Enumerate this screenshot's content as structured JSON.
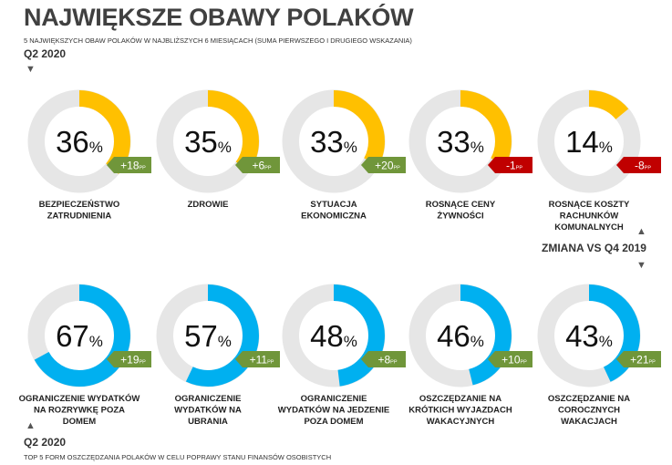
{
  "header": {
    "title": "NAJWIĘKSZE OBAWY POLAKÓW",
    "subtitle": "5 NAJWIĘKSZYCH OBAW POLAKÓW W NAJBLIŻSZYCH 6 MIESIĄCACH (SUMA PIERWSZEGO I DRUGIEGO WSKAZANIA)",
    "period": "Q2 2020"
  },
  "middle_label": "ZMIANA VS Q4 2019",
  "footer": {
    "period": "Q2 2020",
    "subtitle": "TOP 5 FORM OSZCZĘDZANIA POLAKÓW W CELU POPRAWY STANU FINANSÓW OSOBISTYCH"
  },
  "colors": {
    "yellow": "#FFC000",
    "blue": "#00B0F0",
    "track": "#E6E6E6",
    "positive": "#70963A",
    "negative": "#C00000"
  },
  "chart_data": [
    {
      "type": "donut",
      "title": "5 NAJWIĘKSZYCH OBAW POLAKÓW W NAJBLIŻSZYCH 6 MIESIĄCACH (SUMA PIERWSZEGO I DRUGIEGO WSKAZANIA)",
      "color": "yellow",
      "unit": "%",
      "change_unit": "PP",
      "items": [
        {
          "label": "BEZPIECZEŃSTWO ZATRUDNIENIA",
          "lines": [
            "BEZPIECZEŃSTWO",
            "ZATRUDNIENIA"
          ],
          "value": 36,
          "change": "+18",
          "sign": "positive"
        },
        {
          "label": "ZDROWIE",
          "lines": [
            "ZDROWIE"
          ],
          "value": 35,
          "change": "+6",
          "sign": "positive"
        },
        {
          "label": "SYTUACJA EKONOMICZNA",
          "lines": [
            "SYTUACJA",
            "EKONOMICZNA"
          ],
          "value": 33,
          "change": "+20",
          "sign": "positive"
        },
        {
          "label": "ROSNĄCE CENY ŻYWNOŚCI",
          "lines": [
            "ROSNĄCE CENY",
            "ŻYWNOŚCI"
          ],
          "value": 33,
          "change": "-1",
          "sign": "negative"
        },
        {
          "label": "ROSNĄCE KOSZTY RACHUNKÓW KOMUNALNYCH",
          "lines": [
            "ROSNĄCE KOSZTY",
            "RACHUNKÓW",
            "KOMUNALNYCH"
          ],
          "value": 14,
          "change": "-8",
          "sign": "negative"
        }
      ]
    },
    {
      "type": "donut",
      "title": "TOP 5 FORM OSZCZĘDZANIA POLAKÓW W CELU POPRAWY STANU FINANSÓW OSOBISTYCH",
      "color": "blue",
      "unit": "%",
      "change_unit": "PP",
      "items": [
        {
          "label": "OGRANICZENIE WYDATKÓW NA ROZRYWKĘ POZA DOMEM",
          "lines": [
            "OGRANICZENIE WYDATKÓW",
            "NA ROZRYWKĘ POZA",
            "DOMEM"
          ],
          "value": 67,
          "change": "+19",
          "sign": "positive"
        },
        {
          "label": "OGRANICZENIE WYDATKÓW NA UBRANIA",
          "lines": [
            "OGRANICZENIE",
            "WYDATKÓW NA",
            "UBRANIA"
          ],
          "value": 57,
          "change": "+11",
          "sign": "positive"
        },
        {
          "label": "OGRANICZENIE WYDATKÓW NA JEDZENIE POZA DOMEM",
          "lines": [
            "OGRANICZENIE",
            "WYDATKÓW NA JEDZENIE",
            "POZA DOMEM"
          ],
          "value": 48,
          "change": "+8",
          "sign": "positive"
        },
        {
          "label": "OSZCZĘDZANIE NA KRÓTKICH WYJAZDACH WAKACYJNYCH",
          "lines": [
            "OSZCZĘDZANIE NA",
            "KRÓTKICH WYJAZDACH",
            "WAKACYJNYCH"
          ],
          "value": 46,
          "change": "+10",
          "sign": "positive"
        },
        {
          "label": "OSZCZĘDZANIE NA COROCZNYCH WAKACJACH",
          "lines": [
            "OSZCZĘDZANIE NA",
            "COROCZNYCH",
            "WAKACJACH"
          ],
          "value": 43,
          "change": "+21",
          "sign": "positive"
        }
      ]
    }
  ]
}
